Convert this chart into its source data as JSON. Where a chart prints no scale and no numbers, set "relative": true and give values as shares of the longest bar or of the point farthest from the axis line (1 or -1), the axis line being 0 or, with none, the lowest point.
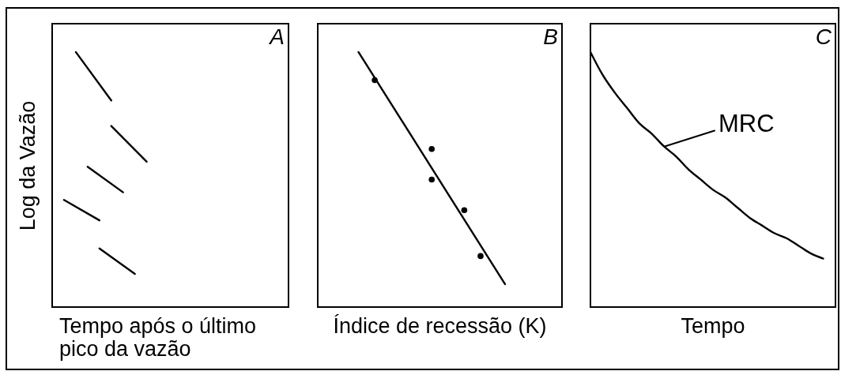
{
  "chart_data": [
    {
      "type": "line",
      "title": "A",
      "xlabel": "Tempo após o último pico da vazão",
      "ylabel": "Log da Vazão",
      "relative": true,
      "categories": [
        null,
        null,
        null,
        null,
        null,
        null,
        null,
        null,
        null,
        null,
        null,
        null,
        null,
        null,
        null,
        null,
        null,
        null,
        null,
        null,
        null
      ],
      "series": [
        {
          "color": "#000000",
          "values": [
            null,
            null,
            1,
            null,
            null,
            0.81,
            null,
            null,
            null,
            null,
            null,
            null,
            null,
            null,
            null,
            null,
            null,
            null,
            null,
            null,
            null
          ]
        },
        {
          "color": "#000000",
          "values": [
            null,
            null,
            null,
            null,
            null,
            0.71,
            null,
            null,
            0.57,
            null,
            null,
            null,
            null,
            null,
            null,
            null,
            null,
            null,
            null,
            null,
            null
          ]
        },
        {
          "color": "#000000",
          "values": [
            null,
            null,
            null,
            0.55,
            null,
            null,
            0.45,
            null,
            null,
            null,
            null,
            null,
            null,
            null,
            null,
            null,
            null,
            null,
            null,
            null,
            null
          ]
        },
        {
          "color": "#000000",
          "values": [
            null,
            0.42,
            null,
            null,
            0.34,
            null,
            null,
            null,
            null,
            null,
            null,
            null,
            null,
            null,
            null,
            null,
            null,
            null,
            null,
            null,
            null
          ]
        },
        {
          "color": "#000000",
          "values": [
            null,
            null,
            null,
            null,
            0.23,
            null,
            null,
            0.13,
            null,
            null,
            null,
            null,
            null,
            null,
            null,
            null,
            null,
            null,
            null,
            null,
            null
          ]
        }
      ]
    },
    {
      "type": "line",
      "title": "B",
      "xlabel": "Índice de recessão (K)",
      "relative": true,
      "categories": [
        null,
        null,
        null,
        null,
        null,
        null,
        null,
        null,
        null,
        null,
        null,
        null,
        null,
        null,
        null,
        null,
        null,
        null,
        null,
        null,
        null,
        null,
        null,
        null,
        null,
        null,
        null,
        null,
        null,
        null,
        null
      ],
      "series": [
        {
          "marker": "circle",
          "color": "#000000",
          "values": [
            null,
            null,
            null,
            null,
            null,
            null,
            null,
            0.89,
            null,
            null,
            null,
            null,
            null,
            null,
            0.62,
            null,
            null,
            null,
            0.38,
            null,
            0.2,
            null,
            null,
            null,
            null,
            null,
            null,
            null,
            null,
            null,
            null
          ]
        },
        {
          "marker": "circle",
          "color": "#000000",
          "values": [
            null,
            null,
            null,
            null,
            null,
            null,
            null,
            null,
            null,
            null,
            null,
            null,
            null,
            null,
            0.5,
            null,
            null,
            null,
            null,
            null,
            null,
            null,
            null,
            null,
            null,
            null,
            null,
            null,
            null,
            null,
            null
          ]
        },
        {
          "color": "#000000",
          "values": [
            null,
            null,
            null,
            null,
            null,
            1,
            null,
            null,
            null,
            null,
            null,
            null,
            null,
            null,
            null,
            null,
            null,
            null,
            null,
            null,
            null,
            null,
            null,
            0.09,
            null,
            null,
            null,
            null,
            null,
            null,
            null
          ]
        }
      ]
    },
    {
      "type": "line",
      "title": "C",
      "xlabel": "Tempo",
      "relative": true,
      "annotations": [
        "MRC"
      ],
      "categories": [
        null,
        null,
        null,
        null,
        null,
        null,
        null,
        null,
        null,
        null,
        null,
        null,
        null,
        null,
        null,
        null,
        null,
        null,
        null,
        null,
        null
      ],
      "series": [
        {
          "color": "#000000",
          "values": [
            1,
            0.91,
            0.84,
            0.78,
            0.72,
            0.68,
            0.63,
            0.59,
            0.54,
            0.5,
            0.46,
            0.43,
            0.39,
            0.35,
            0.32,
            0.29,
            0.27,
            0.24,
            0.21,
            0.19,
            null
          ]
        }
      ]
    }
  ]
}
